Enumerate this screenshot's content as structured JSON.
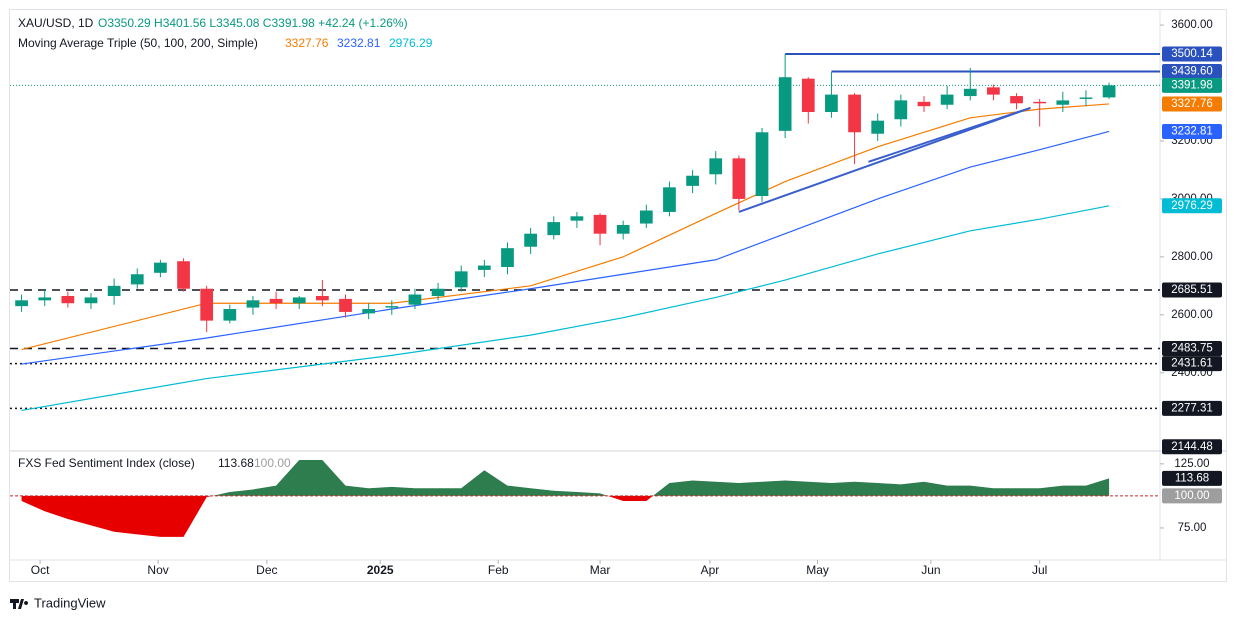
{
  "chart_data": {
    "type": "candlestick",
    "title": "XAU/USD, 1D",
    "ohlc_label": "O3350.29 H3401.56 L3345.08 C3391.98 +42.24 (+1.26%)",
    "indicator": "Moving Average Triple (50, 100, 200, Simple)",
    "x": [
      0,
      1,
      2,
      3,
      4,
      5,
      6,
      7,
      8,
      9,
      10,
      11,
      12,
      13,
      14,
      15,
      16,
      17,
      18,
      19,
      20,
      21,
      22,
      23,
      24,
      25,
      26,
      27,
      28,
      29,
      30,
      31,
      32,
      33,
      34,
      35,
      36,
      37,
      38,
      39,
      40,
      41,
      42,
      43,
      44,
      45,
      46,
      47
    ],
    "open": [
      2630,
      2650,
      2665,
      2640,
      2665,
      2705,
      2745,
      2785,
      2690,
      2580,
      2625,
      2655,
      2640,
      2665,
      2655,
      2605,
      2625,
      2635,
      2665,
      2695,
      2755,
      2765,
      2835,
      2875,
      2925,
      2945,
      2880,
      2915,
      2955,
      3045,
      3085,
      3140,
      3010,
      3235,
      3415,
      3300,
      3360,
      3225,
      3275,
      3335,
      3325,
      3355,
      3385,
      3355,
      3335,
      3325,
      3345,
      3350.29
    ],
    "high": [
      2670,
      2685,
      2680,
      2675,
      2725,
      2760,
      2790,
      2795,
      2700,
      2635,
      2665,
      2680,
      2665,
      2720,
      2670,
      2640,
      2650,
      2690,
      2710,
      2770,
      2790,
      2850,
      2900,
      2940,
      2955,
      2950,
      2925,
      2980,
      3060,
      3100,
      3165,
      3150,
      3245,
      3500.14,
      3420,
      3438,
      3365,
      3295,
      3360,
      3355,
      3390,
      3452,
      3395,
      3365,
      3345,
      3370,
      3375,
      3401.56
    ],
    "low": [
      2610,
      2630,
      2625,
      2620,
      2635,
      2690,
      2730,
      2680,
      2540,
      2570,
      2600,
      2620,
      2620,
      2630,
      2590,
      2585,
      2600,
      2620,
      2650,
      2680,
      2730,
      2740,
      2810,
      2860,
      2900,
      2840,
      2860,
      2900,
      2940,
      3020,
      3050,
      2960,
      2990,
      3210,
      3260,
      3280,
      3120,
      3200,
      3250,
      3300,
      3310,
      3340,
      3340,
      3310,
      3250,
      3300,
      3320,
      3345.08
    ],
    "close": [
      2650,
      2660,
      2640,
      2660,
      2700,
      2740,
      2780,
      2690,
      2580,
      2620,
      2650,
      2640,
      2660,
      2650,
      2610,
      2620,
      2630,
      2670,
      2690,
      2750,
      2770,
      2830,
      2880,
      2920,
      2940,
      2880,
      2910,
      2960,
      3040,
      3080,
      3140,
      3000,
      3230,
      3420,
      3300,
      3360,
      3230,
      3270,
      3340,
      3320,
      3360,
      3380,
      3360,
      3330,
      3330,
      3340,
      3350,
      3391.98
    ],
    "up_color": "#089981",
    "down_color": "#f23645",
    "xlim": [
      -0.5,
      49.2
    ],
    "xticks": [
      {
        "value": 0.8,
        "label": "Oct"
      },
      {
        "value": 5.9,
        "label": "Nov"
      },
      {
        "value": 10.6,
        "label": "Dec"
      },
      {
        "value": 15.5,
        "label": "2025"
      },
      {
        "value": 20.6,
        "label": "Feb"
      },
      {
        "value": 25.0,
        "label": "Mar"
      },
      {
        "value": 29.75,
        "label": "Apr"
      },
      {
        "value": 34.4,
        "label": "May"
      },
      {
        "value": 39.3,
        "label": "Jun"
      },
      {
        "value": 44.0,
        "label": "Jul"
      }
    ],
    "ylim": [
      2130,
      3652
    ],
    "yticks": [
      {
        "value": 3600,
        "label": "3600.00"
      },
      {
        "value": 3200,
        "label": "3200.00"
      },
      {
        "value": 3000,
        "label": "3000.00"
      },
      {
        "value": 2800,
        "label": "2800.00"
      },
      {
        "value": 2600,
        "label": "2600.00"
      },
      {
        "value": 2400,
        "label": "2400.00"
      }
    ],
    "series": [
      {
        "color": "#f57c00",
        "x": [
          0,
          8,
          16,
          22,
          26,
          30,
          33,
          37,
          41,
          44,
          47
        ],
        "values": [
          2480,
          2640,
          2640,
          2700,
          2800,
          2950,
          3060,
          3180,
          3280,
          3310,
          3327.76
        ]
      },
      {
        "color": "#2962ff",
        "x": [
          0,
          8,
          16,
          22,
          26,
          30,
          33,
          37,
          41,
          44,
          47
        ],
        "values": [
          2430,
          2520,
          2620,
          2690,
          2740,
          2790,
          2880,
          3000,
          3110,
          3170,
          3232.81
        ]
      },
      {
        "color": "#00bcd4",
        "x": [
          0,
          8,
          16,
          22,
          26,
          30,
          33,
          37,
          41,
          44,
          47
        ],
        "values": [
          2270,
          2380,
          2460,
          2530,
          2590,
          2660,
          2720,
          2810,
          2890,
          2930,
          2976.29
        ]
      }
    ],
    "current_color": "#089981",
    "levels": [
      {
        "value": 3500.14,
        "label": "3500.14",
        "style": "solid",
        "color": "#2a52be",
        "from": 33
      },
      {
        "value": 3439.6,
        "label": "3439.60",
        "style": "solid",
        "color": "#2a52be",
        "from": 35
      },
      {
        "value": 2685.51,
        "label": "2685.51",
        "style": "dashed",
        "color": "#131722",
        "from": -0.5
      },
      {
        "value": 2483.75,
        "label": "2483.75",
        "style": "dashed",
        "color": "#131722",
        "from": -0.5
      },
      {
        "value": 2431.61,
        "label": "2431.61",
        "style": "dotted",
        "color": "#131722",
        "from": -0.5
      },
      {
        "value": 2277.31,
        "label": "2277.31",
        "style": "dotted",
        "color": "#131722",
        "from": -0.5
      },
      {
        "value": 2144.48,
        "label": "2144.48",
        "style": "none",
        "color": "#131722",
        "from": -0.5
      }
    ],
    "trendlines": [
      {
        "color": "#3a5fcd",
        "x": [
          31,
          43.6
        ],
        "values": [
          2955,
          3314
        ]
      },
      {
        "color": "#3a5fcd",
        "x": [
          36.6,
          43.6
        ],
        "values": [
          3128,
          3314
        ]
      }
    ],
    "sentiment": {
      "title": "FXS Fed Sentiment Index (close)",
      "baseline": {
        "value": 100,
        "label": "100.00"
      },
      "up_color": "#2e7d4f",
      "down_color": "#e60000",
      "values": [
        96,
        88,
        82,
        77,
        72,
        70,
        68,
        68,
        99,
        103,
        105,
        108,
        128,
        128,
        108,
        106,
        107,
        106,
        106,
        106,
        120,
        108,
        106,
        104,
        103,
        102,
        96,
        96,
        110,
        112,
        111,
        110,
        111,
        112,
        111,
        110,
        111,
        110,
        109,
        111,
        108,
        108,
        106,
        106,
        106,
        108,
        108,
        113.68
      ],
      "ylim": [
        50,
        135
      ],
      "yticks": [
        {
          "value": 125,
          "label": "125.00"
        },
        {
          "value": 75,
          "label": "75.00"
        }
      ]
    },
    "brand": "TradingView"
  }
}
